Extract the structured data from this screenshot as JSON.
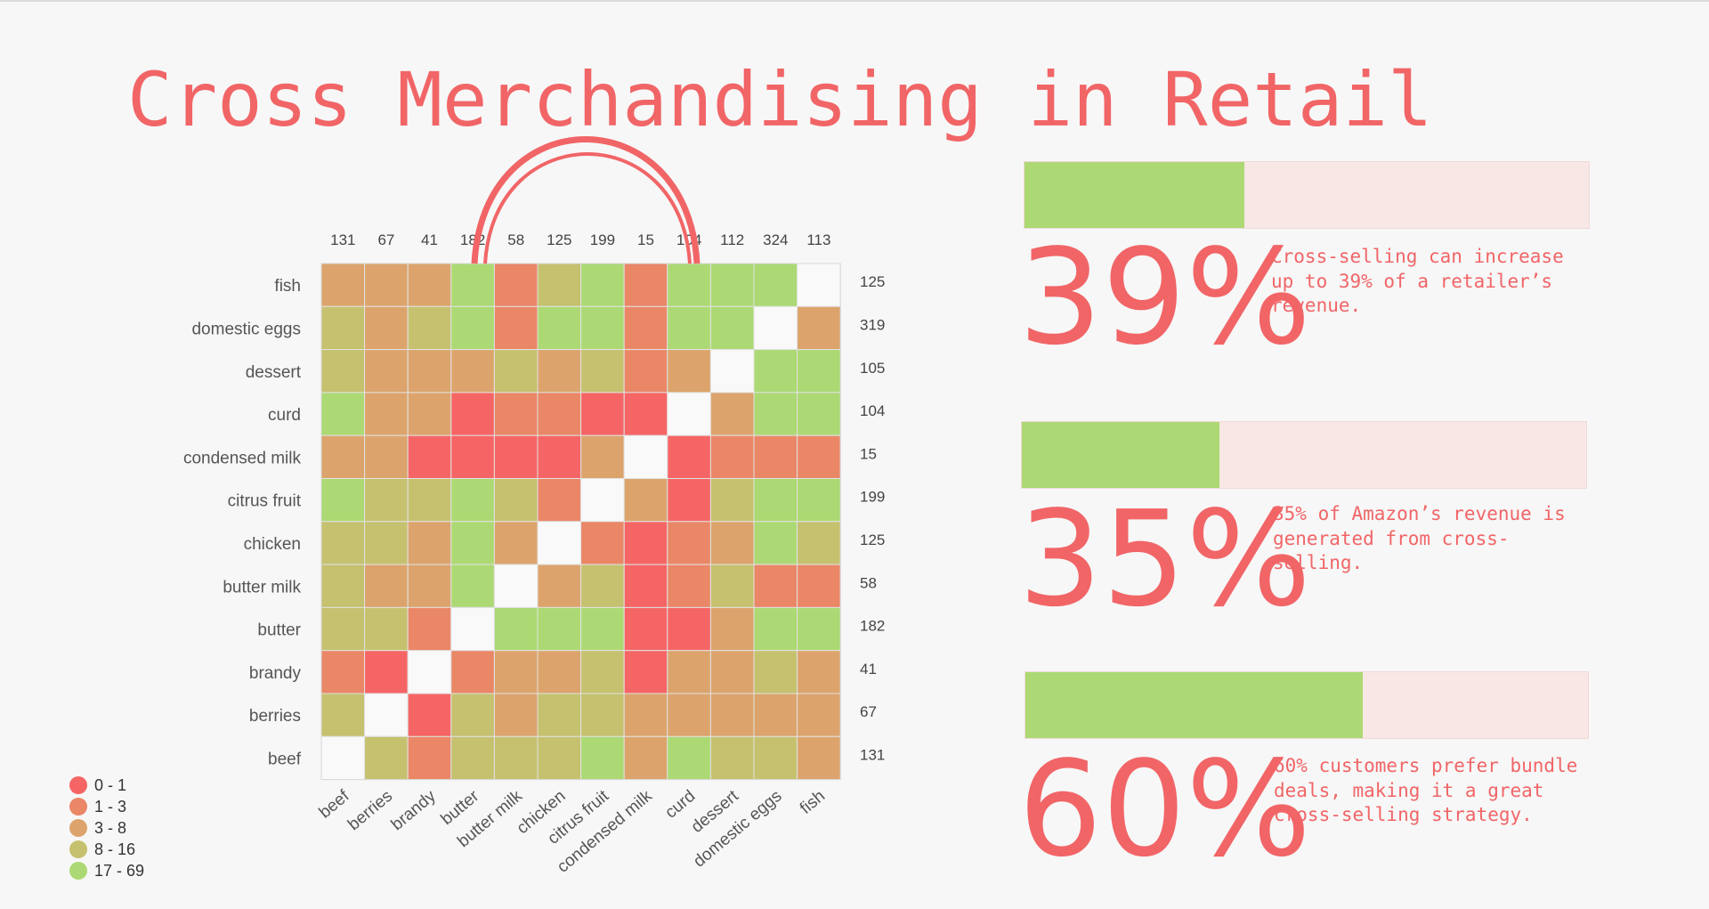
{
  "title": "Cross Merchandising in Retail",
  "colors": {
    "accent": "#f16567",
    "diagonal": "#f9f9f9",
    "bar_fill": "#acd973",
    "bar_track": "#f8e7e5"
  },
  "chart_data": {
    "type": "heatmap",
    "title": "",
    "x_categories": [
      "beef",
      "berries",
      "brandy",
      "butter",
      "butter milk",
      "chicken",
      "citrus fruit",
      "condensed milk",
      "curd",
      "dessert",
      "domestic eggs",
      "fish"
    ],
    "y_categories": [
      "fish",
      "domestic eggs",
      "dessert",
      "curd",
      "condensed milk",
      "citrus fruit",
      "chicken",
      "butter milk",
      "butter",
      "brandy",
      "berries",
      "beef"
    ],
    "column_totals": [
      "131",
      "67",
      "41",
      "182",
      "58",
      "125",
      "199",
      "15",
      "104",
      "112",
      "324",
      "113"
    ],
    "row_totals": [
      "125",
      "319",
      "105",
      "104",
      "15",
      "199",
      "125",
      "58",
      "182",
      "41",
      "67",
      "131"
    ],
    "cell_bins": [
      [
        2,
        2,
        2,
        4,
        1,
        3,
        4,
        1,
        4,
        4,
        4,
        -1
      ],
      [
        3,
        2,
        3,
        4,
        1,
        4,
        4,
        1,
        4,
        4,
        -1,
        2
      ],
      [
        3,
        2,
        2,
        2,
        3,
        2,
        3,
        1,
        2,
        -1,
        4,
        4
      ],
      [
        4,
        2,
        2,
        0,
        1,
        1,
        0,
        0,
        -1,
        2,
        4,
        4
      ],
      [
        2,
        2,
        0,
        0,
        0,
        0,
        2,
        -1,
        0,
        1,
        1,
        1
      ],
      [
        4,
        3,
        3,
        4,
        3,
        1,
        -1,
        2,
        0,
        3,
        4,
        4
      ],
      [
        3,
        3,
        2,
        4,
        2,
        -1,
        1,
        0,
        1,
        2,
        4,
        3
      ],
      [
        3,
        2,
        2,
        4,
        -1,
        2,
        3,
        0,
        1,
        3,
        1,
        1
      ],
      [
        3,
        3,
        1,
        -1,
        4,
        4,
        4,
        0,
        0,
        2,
        4,
        4
      ],
      [
        1,
        0,
        -1,
        1,
        2,
        2,
        3,
        0,
        2,
        2,
        3,
        2
      ],
      [
        3,
        -1,
        0,
        3,
        2,
        3,
        3,
        2,
        2,
        2,
        2,
        2
      ],
      [
        -1,
        3,
        1,
        3,
        3,
        3,
        4,
        2,
        4,
        3,
        3,
        2
      ]
    ],
    "legend": [
      {
        "label": "0 - 1",
        "color": "#f66565"
      },
      {
        "label": "1 - 3",
        "color": "#ea8767"
      },
      {
        "label": "3 - 8",
        "color": "#dca46c"
      },
      {
        "label": "8 - 16",
        "color": "#c6c16f"
      },
      {
        "label": "17 - 69",
        "color": "#acd973"
      }
    ],
    "legend_placement": "bottom-left"
  },
  "stats": [
    {
      "value_label": "39%",
      "fill_fraction": 0.39,
      "description": "Cross-selling can increase up to 39% of a retailer’s revenue."
    },
    {
      "value_label": "35%",
      "fill_fraction": 0.35,
      "description": "35% of Amazon’s revenue is generated from cross-selling."
    },
    {
      "value_label": "60%",
      "fill_fraction": 0.6,
      "description": "60% customers prefer bundle deals, making it a great cross-selling strategy."
    }
  ]
}
